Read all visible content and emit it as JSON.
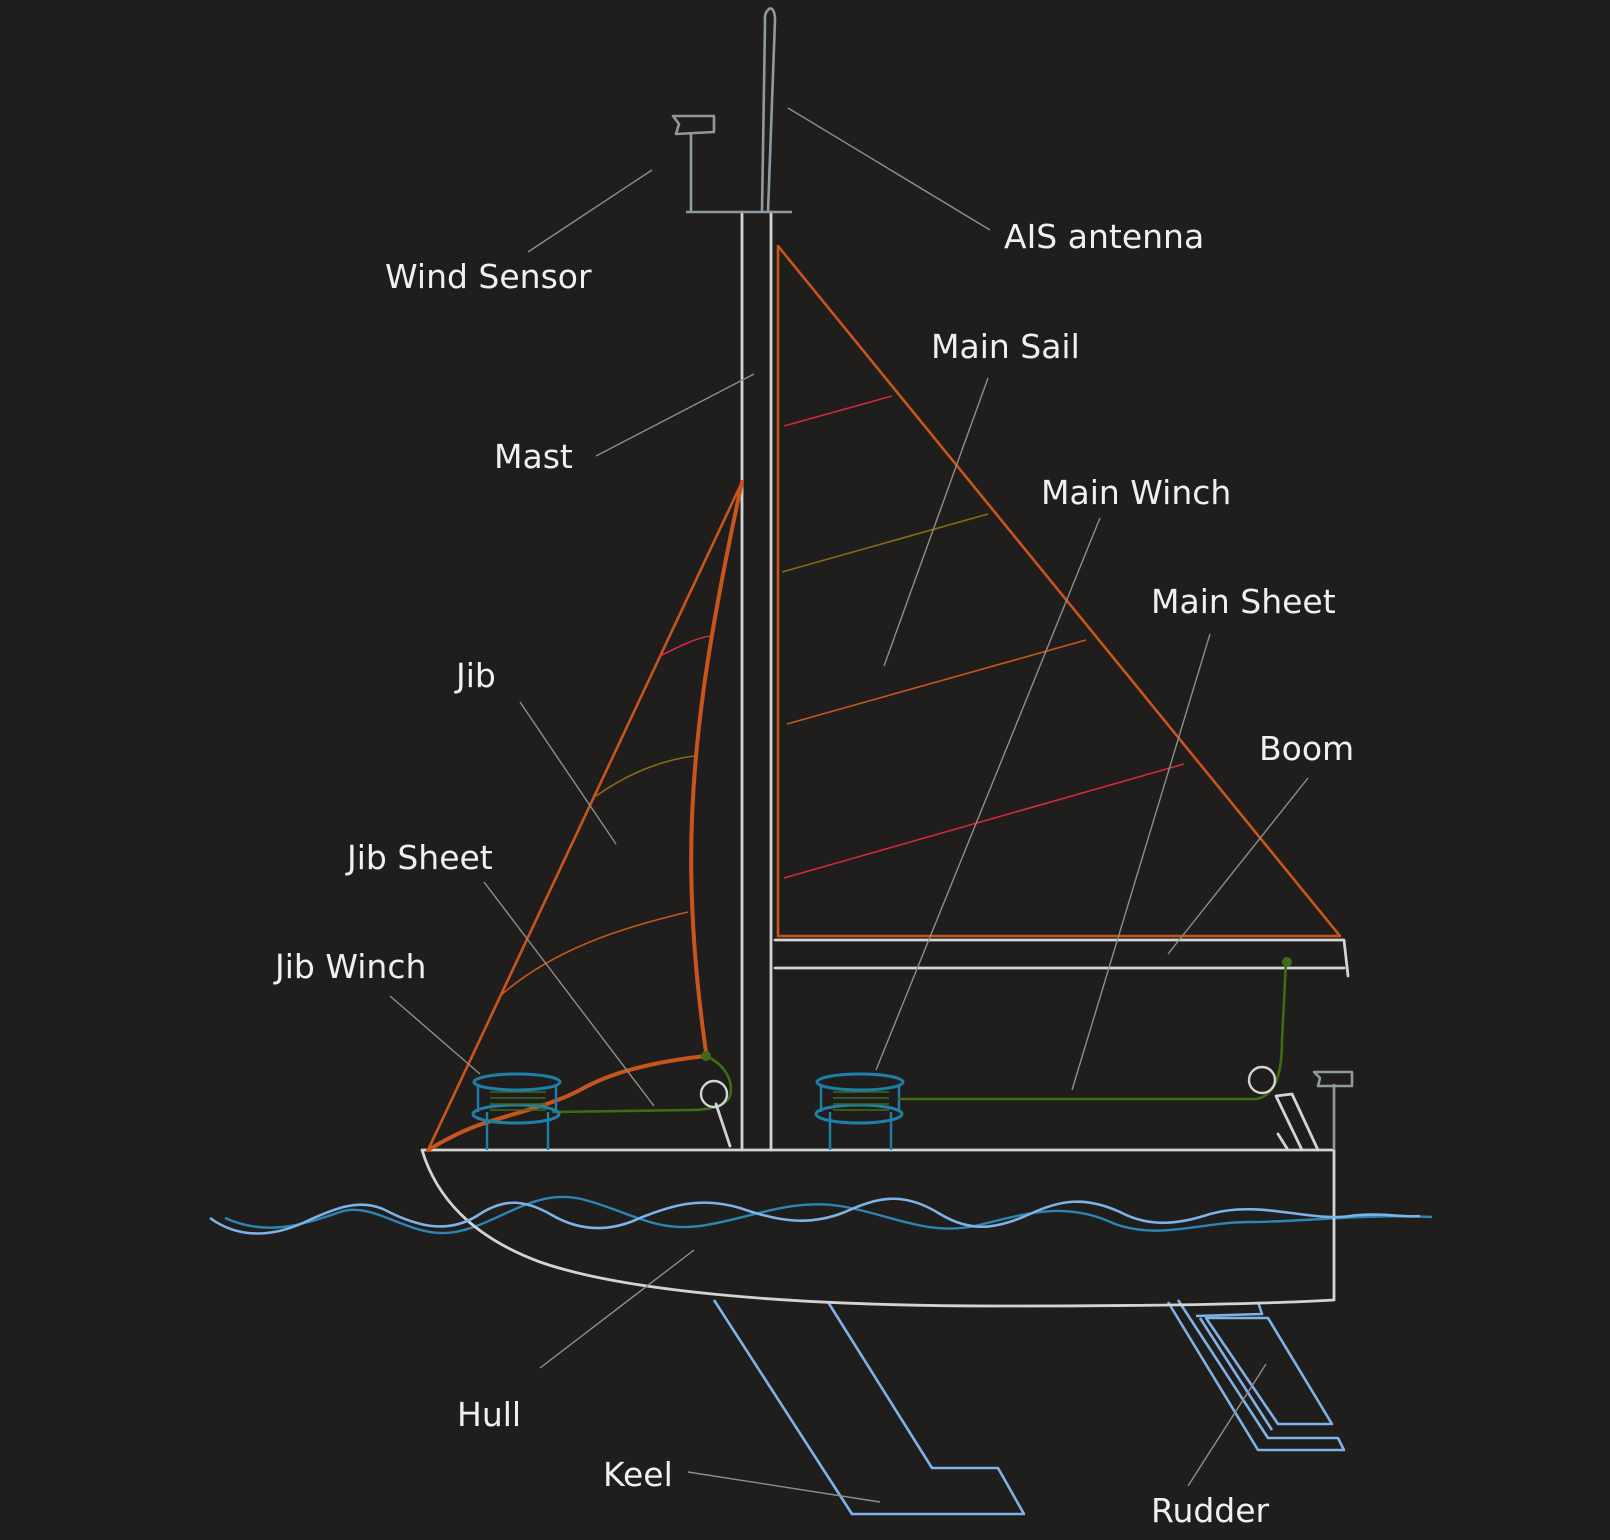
{
  "labels": {
    "ais_antenna": "AIS antenna",
    "wind_sensor": "Wind Sensor",
    "main_sail": "Main Sail",
    "mast": "Mast",
    "main_winch": "Main Winch",
    "main_sheet": "Main Sheet",
    "jib": "Jib",
    "boom": "Boom",
    "jib_sheet": "Jib Sheet",
    "jib_winch": "Jib Winch",
    "hull": "Hull",
    "keel": "Keel",
    "rudder": "Rudder"
  },
  "colors": {
    "background": "#1f1e1d",
    "structure": "#d4d4d4",
    "sail": "#c8561c",
    "tell_tale_red": "#d42a3a",
    "tell_tale_olive": "#8a6a12",
    "sheet_green": "#3e6b18",
    "winch_teal": "#1f7fa8",
    "water_light": "#7fb2e6",
    "water_dark": "#2c86b4",
    "instrument_grey": "#8f9aa0"
  }
}
